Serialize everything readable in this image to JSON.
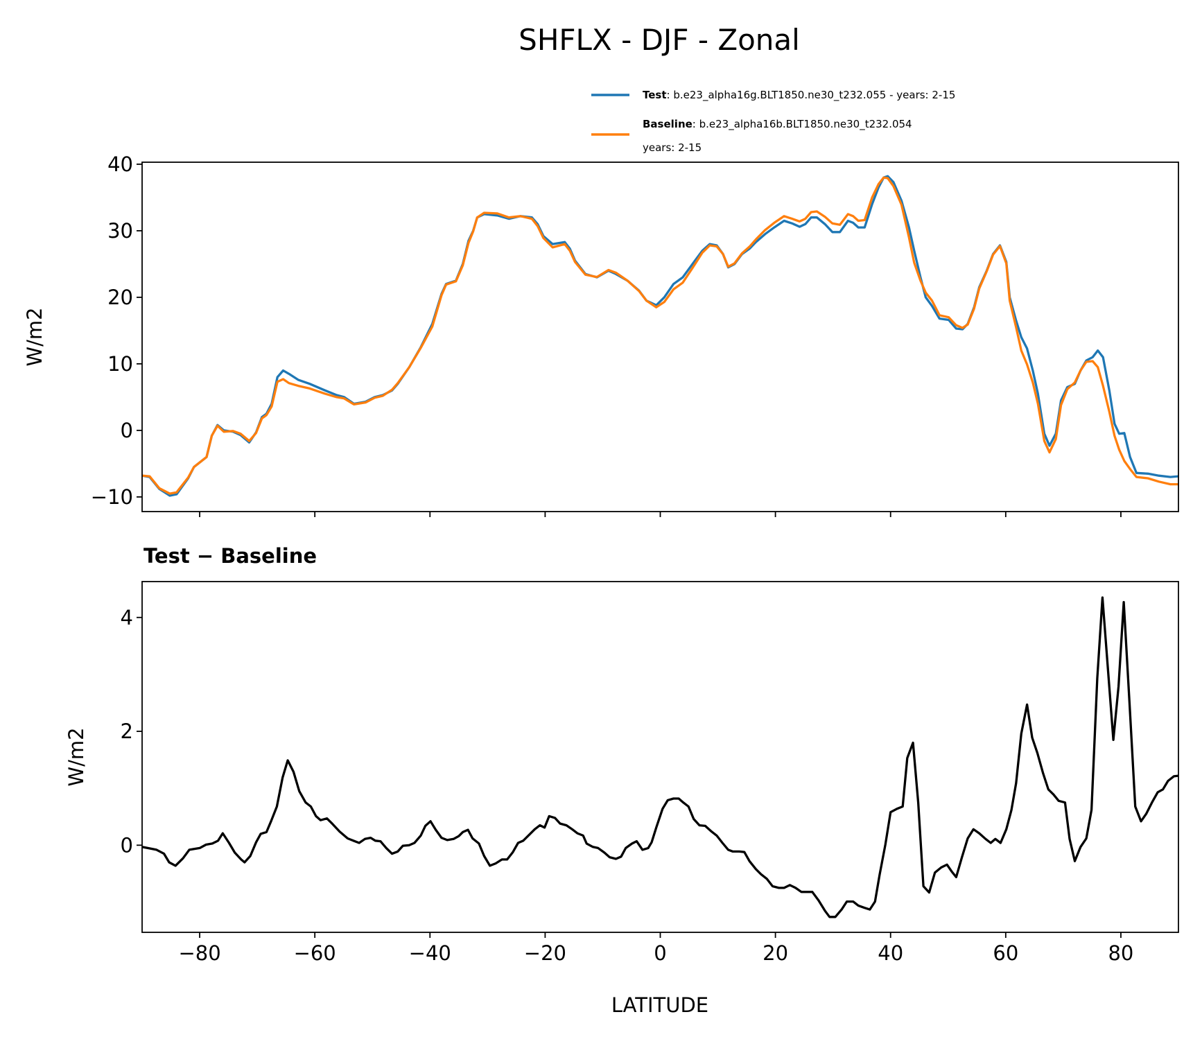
{
  "chart_data": [
    {
      "type": "line",
      "title": "SHFLX - DJF - Zonal",
      "xlabel": "",
      "ylabel": "W/m2",
      "xlim": [
        -90,
        90
      ],
      "ylim": [
        -12.2,
        40.3
      ],
      "yticks": [
        -10,
        0,
        10,
        20,
        30,
        40
      ],
      "ytick_labels": [
        "−10",
        "0",
        "10",
        "20",
        "30",
        "40"
      ],
      "xticks": [
        -80,
        -60,
        -40,
        -20,
        0,
        20,
        40,
        60,
        80
      ],
      "legend_placement": "above-right",
      "legend": [
        {
          "bold": "Test",
          "text": ": b.e23_alpha16g.BLT1850.ne30_t232.055 - years: 2-15",
          "text2": "",
          "color": "#1f77b4"
        },
        {
          "bold": "Baseline",
          "text": ": b.e23_alpha16b.BLT1850.ne30_t232.054",
          "text2": "years: 2-15",
          "color": "#ff7f0e"
        }
      ],
      "x": [
        -90,
        -88.7,
        -87,
        -85.2,
        -84,
        -82,
        -81,
        -78.8,
        -77.9,
        -76.9,
        -75.8,
        -74.2,
        -72.9,
        -71.4,
        -70.2,
        -69.2,
        -68.4,
        -67.5,
        -66.5,
        -65.5,
        -64.5,
        -62.9,
        -60.9,
        -58.2,
        -56.2,
        -54.9,
        -53.2,
        -51.2,
        -49.6,
        -48.2,
        -46.6,
        -45.6,
        -43.6,
        -41.6,
        -39.6,
        -38,
        -37.2,
        -35.5,
        -34.3,
        -33.3,
        -32.5,
        -31.8,
        -30.6,
        -28.3,
        -26.3,
        -24.3,
        -22.3,
        -21.3,
        -20.3,
        -18.7,
        -16.6,
        -15.7,
        -14.8,
        -13,
        -11,
        -9,
        -7.7,
        -5.7,
        -3.7,
        -2.4,
        -0.7,
        0.7,
        2.3,
        3.9,
        5.6,
        7.3,
        8.6,
        9.8,
        10.9,
        11.8,
        12.9,
        14.2,
        15.5,
        16.6,
        18.2,
        19.8,
        21.5,
        22.9,
        24.2,
        25.2,
        26.2,
        27.2,
        28.6,
        29.9,
        31.2,
        32.6,
        33.5,
        34.4,
        35.5,
        36.8,
        37.9,
        38.8,
        39.5,
        40.5,
        41.9,
        43.2,
        44.1,
        45.2,
        46.1,
        47.2,
        48.5,
        50.1,
        51.4,
        52.5,
        53.4,
        54.5,
        55.4,
        56.7,
        57.8,
        59,
        60.1,
        60.7,
        61.8,
        62.7,
        63.7,
        64.7,
        65.6,
        66.7,
        67.6,
        68.7,
        69.6,
        70.7,
        72,
        73,
        74,
        75.1,
        76,
        76.9,
        78,
        78.9,
        79.7,
        80.6,
        81.6,
        82.7,
        84.7,
        86.6,
        88.6,
        90
      ],
      "series": [
        {
          "name": "Test",
          "color": "#1f77b4",
          "values": [
            -6.8,
            -7,
            -8.8,
            -9.8,
            -9.6,
            -7.2,
            -5.5,
            -4,
            -0.8,
            0.8,
            0,
            -0.2,
            -0.7,
            -1.8,
            -0.3,
            2,
            2.5,
            4,
            8,
            9,
            8.5,
            7.6,
            7,
            6,
            5.3,
            5,
            4,
            4.3,
            5,
            5.3,
            6,
            7,
            9.5,
            12.5,
            16,
            20.5,
            22,
            22.5,
            25,
            28.5,
            30,
            32,
            32.5,
            32.3,
            31.8,
            32.2,
            32,
            31,
            29.2,
            28,
            28.3,
            27.3,
            25.5,
            23.5,
            23,
            24,
            23.5,
            22.5,
            21,
            19.5,
            18.8,
            20,
            22,
            23,
            25,
            27,
            28,
            27.8,
            26.5,
            24.5,
            25,
            26.5,
            27.3,
            28.3,
            29.5,
            30.5,
            31.5,
            31.1,
            30.6,
            31,
            32,
            32,
            31,
            29.8,
            29.8,
            31.5,
            31.2,
            30.5,
            30.5,
            34,
            36.5,
            38,
            38.2,
            37.3,
            34.5,
            30.5,
            27,
            23,
            20,
            18.7,
            16.8,
            16.6,
            15.3,
            15.2,
            16,
            18.5,
            21.5,
            24,
            26.5,
            27.8,
            25.3,
            20,
            16.5,
            14,
            12.3,
            9,
            5.5,
            -0.5,
            -2.3,
            -0.5,
            4.5,
            6.5,
            7,
            9,
            10.5,
            11,
            12,
            11,
            6,
            1,
            -0.5,
            -0.4,
            -4,
            -6.4,
            -6.5,
            -6.8,
            -7,
            -6.9
          ]
        },
        {
          "name": "Baseline",
          "color": "#ff7f0e",
          "values": [
            -6.8,
            -6.9,
            -8.7,
            -9.5,
            -9.3,
            -7.1,
            -5.5,
            -4,
            -0.8,
            0.7,
            -0.2,
            -0.1,
            -0.5,
            -1.6,
            -0.4,
            1.8,
            2.3,
            3.6,
            7.3,
            7.7,
            7.1,
            6.7,
            6.3,
            5.5,
            5,
            4.8,
            3.9,
            4.2,
            4.9,
            5.2,
            6.1,
            7.1,
            9.5,
            12.4,
            15.6,
            20.3,
            21.9,
            22.4,
            24.8,
            28.2,
            29.9,
            32,
            32.7,
            32.6,
            32,
            32.2,
            31.8,
            30.7,
            28.9,
            27.5,
            28,
            27,
            25.3,
            23.4,
            23.05,
            24.1,
            23.7,
            22.5,
            20.95,
            19.5,
            18.5,
            19.3,
            21.2,
            22.2,
            24.4,
            26.7,
            27.8,
            27.65,
            26.5,
            24.6,
            25.1,
            26.6,
            27.6,
            28.7,
            30.1,
            31.2,
            32.2,
            31.8,
            31.4,
            31.8,
            32.8,
            32.9,
            32.1,
            31.1,
            30.9,
            32.5,
            32.2,
            31.5,
            31.6,
            35,
            37,
            38,
            37.9,
            36.7,
            33.9,
            29,
            25.2,
            22.5,
            20.7,
            19.5,
            17.3,
            17,
            15.8,
            15.4,
            15.9,
            18.3,
            21.3,
            23.9,
            26.4,
            27.7,
            25.1,
            19.5,
            15.5,
            12,
            9.9,
            7.2,
            4,
            -1.6,
            -3.3,
            -1.3,
            3.8,
            6.2,
            7.2,
            9,
            10.3,
            10.4,
            9.5,
            6.7,
            2.8,
            -0.8,
            -2.9,
            -4.6,
            -5.8,
            -7,
            -7.2,
            -7.7,
            -8.1,
            -8.1
          ]
        }
      ]
    },
    {
      "type": "line",
      "title": "Test − Baseline",
      "xlabel": "LATITUDE",
      "ylabel": "W/m2",
      "xlim": [
        -90,
        90
      ],
      "ylim": [
        -1.53,
        4.63
      ],
      "yticks": [
        0,
        2,
        4
      ],
      "ytick_labels": [
        "0",
        "2",
        "4"
      ],
      "xticks": [
        -80,
        -60,
        -40,
        -20,
        0,
        20,
        40,
        60,
        80
      ],
      "xtick_labels": [
        "−80",
        "−60",
        "−40",
        "−20",
        "0",
        "20",
        "40",
        "60",
        "80"
      ],
      "x": [
        -90,
        -87.5,
        -86.2,
        -85.3,
        -84.2,
        -82.9,
        -81.8,
        -80,
        -78.9,
        -77.8,
        -76.8,
        -76,
        -74.9,
        -73.9,
        -72.8,
        -72.2,
        -71.2,
        -70.2,
        -69.4,
        -68.4,
        -67.6,
        -66.6,
        -65.6,
        -64.7,
        -63.7,
        -62.7,
        -61.6,
        -60.7,
        -59.8,
        -59,
        -57.9,
        -57,
        -55.7,
        -54.3,
        -53.3,
        -52.3,
        -51.3,
        -50.3,
        -49.5,
        -48.6,
        -47.6,
        -46.6,
        -45.6,
        -44.7,
        -43.6,
        -42.7,
        -41.6,
        -40.8,
        -39.9,
        -39,
        -38,
        -37,
        -35.9,
        -35,
        -34.3,
        -33.4,
        -32.6,
        -31.5,
        -30.6,
        -29.6,
        -28.6,
        -27.5,
        -26.6,
        -25.6,
        -24.7,
        -23.8,
        -22.7,
        -21.8,
        -20.9,
        -20.1,
        -19.3,
        -18.3,
        -17.4,
        -16.3,
        -15.3,
        -14.4,
        -13.4,
        -12.8,
        -11.7,
        -10.8,
        -9.7,
        -8.8,
        -7.7,
        -6.8,
        -6,
        -4.9,
        -4.1,
        -3.1,
        -2.1,
        -1.5,
        -0.7,
        0.4,
        1.3,
        2.3,
        3.2,
        4,
        4.9,
        5.8,
        6.8,
        7.8,
        8.9,
        9.8,
        10.8,
        11.8,
        12.6,
        13.7,
        14.6,
        15.5,
        16.6,
        17.5,
        18.5,
        19.5,
        20.6,
        21.5,
        22.5,
        23.5,
        24.5,
        25.5,
        26.4,
        27.5,
        28.6,
        29.4,
        30.4,
        31.5,
        32.4,
        33.5,
        34.4,
        35.5,
        36.4,
        37.3,
        38.1,
        39.1,
        40,
        41.1,
        42.1,
        42.9,
        43.9,
        44.8,
        45.7,
        46.7,
        47.7,
        48.8,
        49.8,
        50.6,
        51.4,
        52.4,
        53.4,
        54.4,
        55.4,
        56.5,
        57.4,
        58.2,
        59.1,
        60.1,
        61,
        61.8,
        62.7,
        63.7,
        64.6,
        65.5,
        66.5,
        67.4,
        68.3,
        69.2,
        70.3,
        71.1,
        72,
        73,
        74,
        74.9,
        75.9,
        76.8,
        77.7,
        78.7,
        79.6,
        80.5,
        81.5,
        82.5,
        83.5,
        84.4,
        85.4,
        86.4,
        87.3,
        88.2,
        89.2,
        90
      ],
      "series": [
        {
          "name": "Test − Baseline",
          "color": "#000000",
          "values": [
            -0.03,
            -0.08,
            -0.15,
            -0.3,
            -0.36,
            -0.23,
            -0.08,
            -0.05,
            0.01,
            0.03,
            0.08,
            0.21,
            0.04,
            -0.13,
            -0.25,
            -0.3,
            -0.19,
            0.05,
            0.2,
            0.23,
            0.42,
            0.68,
            1.19,
            1.49,
            1.29,
            0.95,
            0.75,
            0.68,
            0.51,
            0.44,
            0.47,
            0.38,
            0.24,
            0.12,
            0.08,
            0.04,
            0.11,
            0.13,
            0.08,
            0.07,
            -0.05,
            -0.15,
            -0.11,
            -0.01,
            0,
            0.04,
            0.17,
            0.34,
            0.42,
            0.27,
            0.13,
            0.09,
            0.11,
            0.16,
            0.23,
            0.27,
            0.12,
            0.03,
            -0.19,
            -0.36,
            -0.32,
            -0.25,
            -0.25,
            -0.12,
            0.04,
            0.08,
            0.19,
            0.28,
            0.35,
            0.31,
            0.51,
            0.48,
            0.38,
            0.35,
            0.28,
            0.21,
            0.17,
            0.03,
            -0.03,
            -0.05,
            -0.13,
            -0.21,
            -0.24,
            -0.2,
            -0.05,
            0.03,
            0.07,
            -0.08,
            -0.05,
            0.05,
            0.31,
            0.64,
            0.79,
            0.82,
            0.82,
            0.75,
            0.68,
            0.46,
            0.35,
            0.34,
            0.24,
            0.17,
            0.04,
            -0.08,
            -0.11,
            -0.11,
            -0.12,
            -0.28,
            -0.42,
            -0.51,
            -0.59,
            -0.72,
            -0.75,
            -0.75,
            -0.7,
            -0.75,
            -0.82,
            -0.82,
            -0.82,
            -0.97,
            -1.15,
            -1.26,
            -1.26,
            -1.13,
            -0.99,
            -0.99,
            -1.06,
            -1.1,
            -1.13,
            -0.99,
            -0.52,
            0.01,
            0.58,
            0.64,
            0.68,
            1.53,
            1.8,
            0.75,
            -0.72,
            -0.83,
            -0.48,
            -0.39,
            -0.34,
            -0.46,
            -0.56,
            -0.21,
            0.12,
            0.28,
            0.21,
            0.11,
            0.04,
            0.11,
            0.04,
            0.28,
            0.62,
            1.09,
            1.96,
            2.47,
            1.89,
            1.62,
            1.26,
            0.98,
            0.89,
            0.78,
            0.75,
            0.11,
            -0.28,
            -0.03,
            0.12,
            0.62,
            2.93,
            4.35,
            3.17,
            1.85,
            2.79,
            4.27,
            2.5,
            0.68,
            0.42,
            0.55,
            0.75,
            0.93,
            0.98,
            1.13,
            1.21,
            1.22
          ]
        }
      ]
    }
  ]
}
